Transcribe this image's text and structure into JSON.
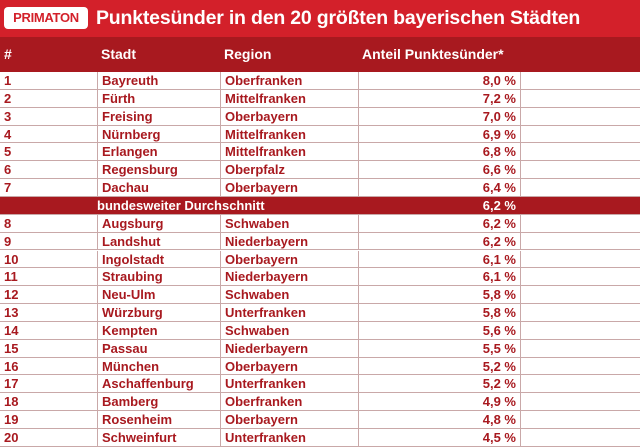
{
  "header": {
    "logo": "PRIMATON",
    "title": "Punktesünder in den 20 größten bayerischen Städten"
  },
  "table": {
    "columns": [
      "#",
      "Stadt",
      "Region",
      "Anteil Punktesünder*"
    ],
    "rows": [
      [
        "1",
        "Bayreuth",
        "Oberfranken",
        "8,0 %"
      ],
      [
        "2",
        "Fürth",
        "Mittelfranken",
        "7,2 %"
      ],
      [
        "3",
        "Freising",
        "Oberbayern",
        "7,0 %"
      ],
      [
        "4",
        "Nürnberg",
        "Mittelfranken",
        "6,9 %"
      ],
      [
        "5",
        "Erlangen",
        "Mittelfranken",
        "6,8 %"
      ],
      [
        "6",
        "Regensburg",
        "Oberpfalz",
        "6,6 %"
      ],
      [
        "7",
        "Dachau",
        "Oberbayern",
        "6,4 %"
      ],
      {
        "label": "bundesweiter Durchschnitt",
        "value": "6,2 %"
      },
      [
        "8",
        "Augsburg",
        "Schwaben",
        "6,2 %"
      ],
      [
        "9",
        "Landshut",
        "Niederbayern",
        "6,2 %"
      ],
      [
        "10",
        "Ingolstadt",
        "Oberbayern",
        "6,1 %"
      ],
      [
        "11",
        "Straubing",
        "Niederbayern",
        "6,1 %"
      ],
      [
        "12",
        "Neu-Ulm",
        "Schwaben",
        "5,8 %"
      ],
      [
        "13",
        "Würzburg",
        "Unterfranken",
        "5,8 %"
      ],
      [
        "14",
        "Kempten",
        "Schwaben",
        "5,6 %"
      ],
      [
        "15",
        "Passau",
        "Niederbayern",
        "5,5 %"
      ],
      [
        "16",
        "München",
        "Oberbayern",
        "5,2 %"
      ],
      [
        "17",
        "Aschaffenburg",
        "Unterfranken",
        "5,2 %"
      ],
      [
        "18",
        "Bamberg",
        "Oberfranken",
        "4,9 %"
      ],
      [
        "19",
        "Rosenheim",
        "Oberbayern",
        "4,8 %"
      ],
      [
        "20",
        "Schweinfurt",
        "Unterfranken",
        "4,5 %"
      ]
    ]
  }
}
